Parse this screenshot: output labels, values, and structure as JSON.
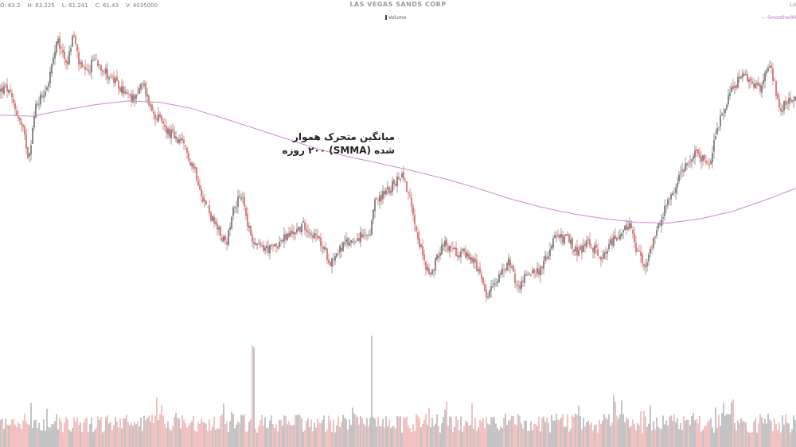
{
  "header": {
    "ohlc": "O: 63.2    H: 63.225    L: 61.241    C: 61.43    V: 4035000",
    "title": "LAS VEGAS SANDS CORP",
    "corner": "Lo",
    "volume_label": "Volume",
    "smma_label": "SmoothedM"
  },
  "annotation": {
    "line1": "میانگین متحرک هموار",
    "line2": "شده (SMMA) ۲۰۰ روزه"
  },
  "colors": {
    "up": "#555555",
    "down": "#c94a4a",
    "vol_up": "#b5b5b5",
    "vol_down": "#efb3b3",
    "smma": "#cc88cc"
  },
  "chart_data": {
    "type": "candlestick",
    "series": [
      {
        "name": "Volume",
        "type": "bar"
      },
      {
        "name": "SmoothedM",
        "type": "line"
      }
    ],
    "price_path": [
      [
        0,
        62.5
      ],
      [
        8,
        63.0
      ],
      [
        18,
        60.0
      ],
      [
        30,
        55.5
      ],
      [
        36,
        51.5
      ],
      [
        45,
        60.0
      ],
      [
        60,
        63.5
      ],
      [
        72,
        70.5
      ],
      [
        85,
        67.0
      ],
      [
        92,
        72.0
      ],
      [
        100,
        66.5
      ],
      [
        110,
        65.0
      ],
      [
        118,
        68.0
      ],
      [
        130,
        66.0
      ],
      [
        150,
        63.0
      ],
      [
        165,
        61.0
      ],
      [
        180,
        63.5
      ],
      [
        190,
        59.5
      ],
      [
        210,
        56.0
      ],
      [
        230,
        53.5
      ],
      [
        245,
        49.5
      ],
      [
        255,
        45.0
      ],
      [
        268,
        41.0
      ],
      [
        285,
        37.0
      ],
      [
        292,
        43.5
      ],
      [
        305,
        45.0
      ],
      [
        312,
        40.0
      ],
      [
        320,
        37.0
      ],
      [
        340,
        36.5
      ],
      [
        360,
        38.5
      ],
      [
        382,
        40.5
      ],
      [
        400,
        38.0
      ],
      [
        415,
        34.5
      ],
      [
        430,
        37.0
      ],
      [
        450,
        38.5
      ],
      [
        465,
        38.5
      ],
      [
        470,
        44.0
      ],
      [
        490,
        46.5
      ],
      [
        505,
        49.0
      ],
      [
        515,
        45.0
      ],
      [
        528,
        37.0
      ],
      [
        540,
        31.5
      ],
      [
        555,
        37.5
      ],
      [
        575,
        36.0
      ],
      [
        590,
        35.5
      ],
      [
        600,
        33.0
      ],
      [
        612,
        28.5
      ],
      [
        625,
        32.0
      ],
      [
        640,
        34.5
      ],
      [
        650,
        30.0
      ],
      [
        665,
        33.0
      ],
      [
        680,
        33.0
      ],
      [
        695,
        38.0
      ],
      [
        710,
        38.5
      ],
      [
        725,
        36.0
      ],
      [
        740,
        37.5
      ],
      [
        755,
        35.5
      ],
      [
        770,
        38.0
      ],
      [
        790,
        40.5
      ],
      [
        800,
        36.0
      ],
      [
        812,
        33.5
      ],
      [
        825,
        40.0
      ],
      [
        840,
        44.5
      ],
      [
        860,
        50.0
      ],
      [
        875,
        52.5
      ],
      [
        890,
        50.0
      ],
      [
        905,
        58.0
      ],
      [
        920,
        63.0
      ],
      [
        935,
        65.0
      ],
      [
        955,
        63.0
      ],
      [
        968,
        66.5
      ],
      [
        980,
        59.5
      ],
      [
        992,
        61.0
      ],
      [
        1000,
        61.4
      ]
    ],
    "smma_path": [
      [
        0,
        58.5
      ],
      [
        40,
        58.3
      ],
      [
        80,
        59.3
      ],
      [
        120,
        60.2
      ],
      [
        160,
        60.8
      ],
      [
        200,
        60.6
      ],
      [
        240,
        59.6
      ],
      [
        280,
        58.0
      ],
      [
        320,
        56.3
      ],
      [
        360,
        54.6
      ],
      [
        400,
        52.9
      ],
      [
        440,
        51.6
      ],
      [
        480,
        50.5
      ],
      [
        520,
        49.3
      ],
      [
        560,
        48.0
      ],
      [
        600,
        46.5
      ],
      [
        640,
        44.8
      ],
      [
        680,
        43.4
      ],
      [
        720,
        42.3
      ],
      [
        760,
        41.5
      ],
      [
        800,
        40.9
      ],
      [
        840,
        40.8
      ],
      [
        880,
        41.5
      ],
      [
        920,
        42.7
      ],
      [
        960,
        44.5
      ],
      [
        1000,
        46.5
      ]
    ],
    "volume_spikes": [
      [
        318,
        3.2
      ],
      [
        467,
        3.1
      ],
      [
        772,
        1.5
      ],
      [
        920,
        1.4
      ],
      [
        292,
        1.1
      ],
      [
        220,
        1.0
      ],
      [
        870,
        1.0
      ]
    ],
    "last": {
      "open": 63.2,
      "high": 63.225,
      "low": 61.241,
      "close": 61.43,
      "volume": 4035000
    },
    "ylim": [
      20,
      75
    ],
    "grid": false,
    "legend": "top-right"
  }
}
